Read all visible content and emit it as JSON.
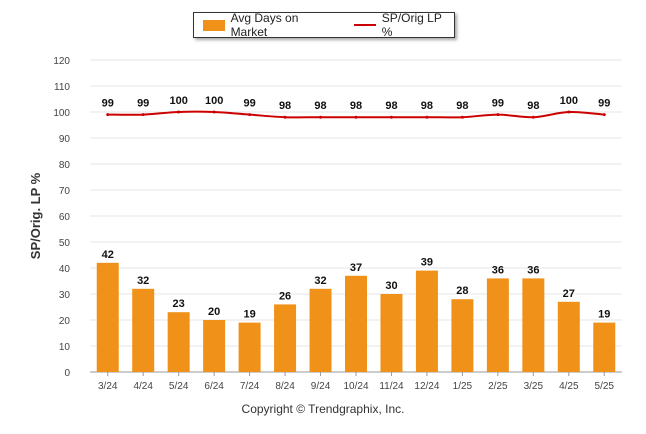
{
  "chart_data": {
    "type": "bar",
    "categories": [
      "3/24",
      "4/24",
      "5/24",
      "6/24",
      "7/24",
      "8/24",
      "9/24",
      "10/24",
      "11/24",
      "12/24",
      "1/25",
      "2/25",
      "3/25",
      "4/25",
      "5/25"
    ],
    "series": [
      {
        "name": "Avg Days on Market",
        "type": "bar",
        "values": [
          42,
          32,
          23,
          20,
          19,
          26,
          32,
          37,
          30,
          39,
          28,
          36,
          36,
          27,
          19
        ]
      },
      {
        "name": "SP/Orig LP %",
        "type": "line",
        "values": [
          99,
          99,
          100,
          100,
          99,
          98,
          98,
          98,
          98,
          98,
          98,
          99,
          98,
          100,
          99
        ]
      }
    ],
    "ylabel": "SP/Orig. LP %",
    "ylim": [
      0,
      120
    ],
    "yticks": [
      0,
      10,
      20,
      30,
      40,
      50,
      60,
      70,
      80,
      90,
      100,
      110,
      120
    ],
    "grid": true,
    "legend_position": "top-center",
    "colors": {
      "bar": "#F0921A",
      "line": "#CC0000"
    }
  },
  "footer": {
    "copyright": "Copyright © Trendgraphix, Inc."
  }
}
